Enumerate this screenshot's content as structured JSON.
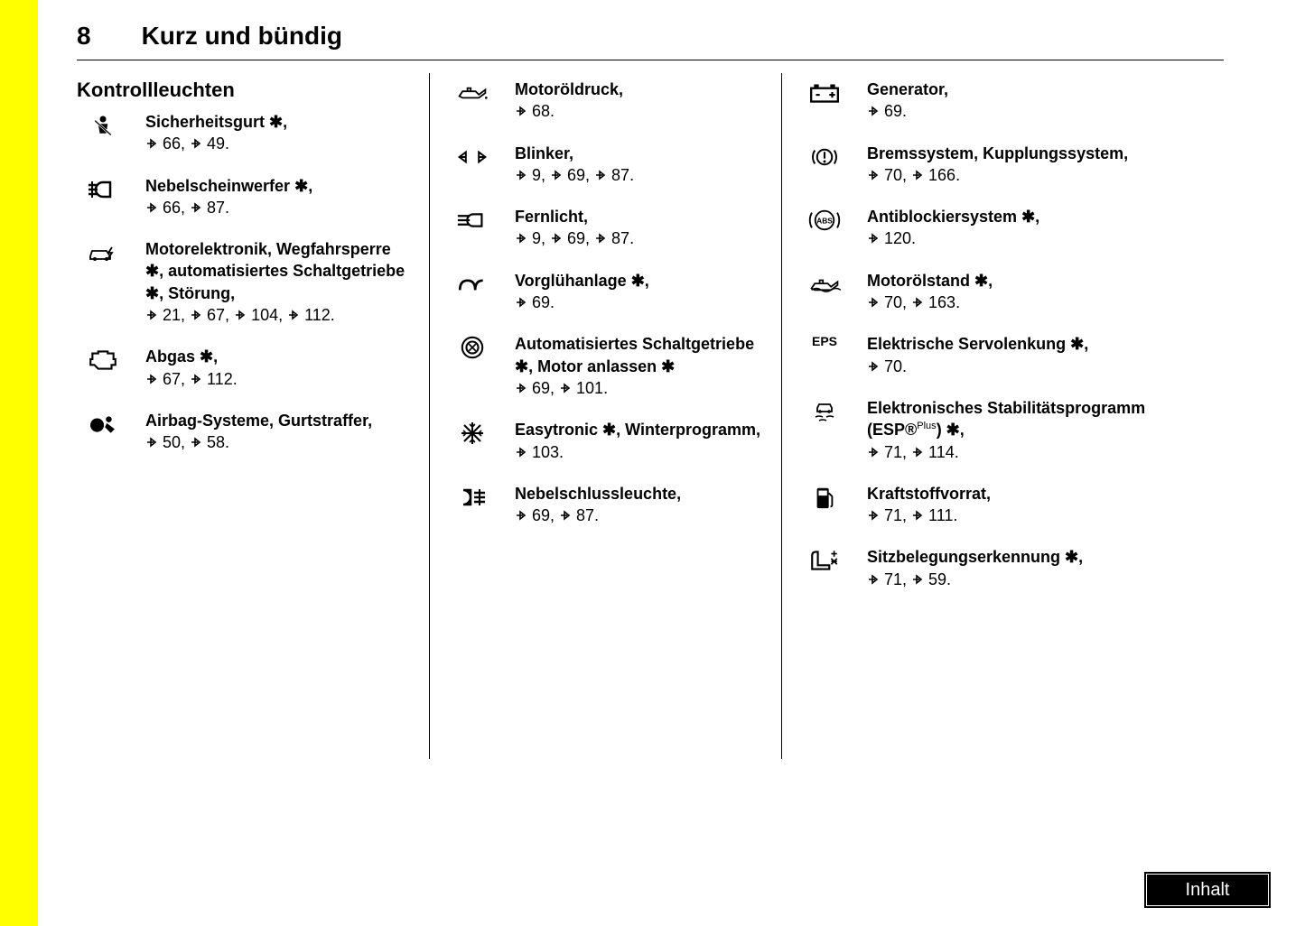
{
  "page": {
    "number": "8",
    "header_title": "Kurz und bündig",
    "section_title": "Kontrollleuchten",
    "toc_label": "Inhalt",
    "colors": {
      "yellow": "#ffff00",
      "black": "#000000",
      "white": "#ffffff"
    }
  },
  "columns": [
    {
      "entries": [
        {
          "icon": "seatbelt",
          "label": "Sicherheitsgurt",
          "star_after_label": true,
          "suffix": ",",
          "refs": [
            66,
            49
          ]
        },
        {
          "icon": "fog-front",
          "label": "Nebelscheinwerfer",
          "star_after_label": true,
          "suffix": ",",
          "refs": [
            66,
            87
          ]
        },
        {
          "icon": "engine-electronics",
          "label_html": "Motorelektronik, Wegfahrsperre ✱, automatisiertes Schaltgetriebe ✱, Störung,",
          "refs": [
            21,
            67,
            104,
            112
          ]
        },
        {
          "icon": "engine",
          "label": "Abgas",
          "star_after_label": true,
          "suffix": ",",
          "refs": [
            67,
            112
          ]
        },
        {
          "icon": "airbag",
          "label": "Airbag-Systeme, Gurtstraffer,",
          "refs": [
            50,
            58
          ]
        }
      ]
    },
    {
      "entries": [
        {
          "icon": "oil-pressure",
          "label": "Motoröldruck,",
          "refs": [
            68
          ]
        },
        {
          "icon": "blinker",
          "label": "Blinker,",
          "refs": [
            9,
            69,
            87
          ]
        },
        {
          "icon": "highbeam",
          "label": "Fernlicht,",
          "refs": [
            9,
            69,
            87
          ]
        },
        {
          "icon": "glowplug",
          "label": "Vorglühanlage",
          "star_after_label": true,
          "suffix": ",",
          "refs": [
            69
          ]
        },
        {
          "icon": "auto-gearbox",
          "label_html": "Automatisiertes Schaltgetriebe ✱, Motor anlassen ✱",
          "refs": [
            69,
            101
          ]
        },
        {
          "icon": "snowflake",
          "label_html": "Easytronic ✱, Winterprogramm,",
          "refs": [
            103
          ]
        },
        {
          "icon": "fog-rear",
          "label": "Nebelschlussleuchte,",
          "refs": [
            69,
            87
          ]
        }
      ]
    },
    {
      "entries": [
        {
          "icon": "battery",
          "label": "Generator,",
          "refs": [
            69
          ]
        },
        {
          "icon": "brake",
          "label": "Bremssystem, Kupplungssystem,",
          "refs": [
            70,
            166
          ]
        },
        {
          "icon": "abs",
          "label": "Antiblockiersystem",
          "star_after_label": true,
          "suffix": ",",
          "refs": [
            120
          ]
        },
        {
          "icon": "oil-level",
          "label": "Motorölstand",
          "star_after_label": true,
          "suffix": ",",
          "refs": [
            70,
            163
          ]
        },
        {
          "icon": "eps",
          "icon_text": "EPS",
          "label": "Elektrische Servolenkung",
          "star_after_label": true,
          "suffix": ",",
          "refs": [
            70
          ]
        },
        {
          "icon": "esp",
          "label_html": "Elektronisches Stabilitätsprogramm (ESP®<span class=\"plus-sup\">Plus</span>) ✱,",
          "refs": [
            71,
            114
          ]
        },
        {
          "icon": "fuel",
          "label": "Kraftstoffvorrat,",
          "refs": [
            71,
            111
          ]
        },
        {
          "icon": "seat-occupancy",
          "label": "Sitzbelegungserkennung",
          "star_after_label": true,
          "suffix": ",",
          "refs": [
            71,
            59
          ]
        }
      ]
    }
  ]
}
